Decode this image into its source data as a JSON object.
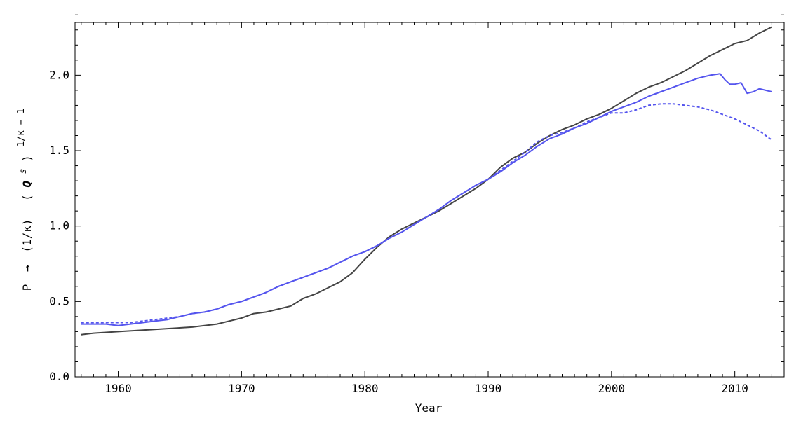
{
  "chart_data": {
    "type": "line",
    "title": "",
    "xlabel": "Year",
    "ylabel": "P → (1/κ) (Qˢ)^(1/κ − 1)",
    "ylabel_parts": {
      "p": "P",
      "arrow": "→",
      "inv_kappa": "(1/κ)",
      "q_open": "(",
      "q": "Q",
      "s": "s",
      "q_close": ")",
      "exponent": "1/κ − 1"
    },
    "xlim": [
      1956.5,
      2014
    ],
    "ylim": [
      0,
      2.35
    ],
    "xticks": [
      1960,
      1970,
      1980,
      1990,
      2000,
      2010
    ],
    "xtick_labels": [
      "1960",
      "1970",
      "1980",
      "1990",
      "2000",
      "2010"
    ],
    "yticks": [
      0,
      0.5,
      1.0,
      1.5,
      2.0
    ],
    "ytick_labels": [
      "0.0",
      "0.5",
      "1.0",
      "1.5",
      "2.0"
    ],
    "grid": false,
    "legend": "none",
    "colors": {
      "dark": "#444444",
      "blue": "#5555ee",
      "axis": "#000000"
    },
    "series": [
      {
        "style": "solid-dark",
        "points": [
          [
            1957,
            0.28
          ],
          [
            1958,
            0.29
          ],
          [
            1960,
            0.3
          ],
          [
            1962,
            0.31
          ],
          [
            1964,
            0.32
          ],
          [
            1966,
            0.33
          ],
          [
            1968,
            0.35
          ],
          [
            1969,
            0.37
          ],
          [
            1970,
            0.39
          ],
          [
            1971,
            0.42
          ],
          [
            1972,
            0.43
          ],
          [
            1973,
            0.45
          ],
          [
            1974,
            0.47
          ],
          [
            1975,
            0.52
          ],
          [
            1976,
            0.55
          ],
          [
            1977,
            0.59
          ],
          [
            1978,
            0.63
          ],
          [
            1979,
            0.69
          ],
          [
            1980,
            0.78
          ],
          [
            1981,
            0.86
          ],
          [
            1982,
            0.93
          ],
          [
            1983,
            0.98
          ],
          [
            1984,
            1.02
          ],
          [
            1985,
            1.06
          ],
          [
            1986,
            1.1
          ],
          [
            1987,
            1.15
          ],
          [
            1988,
            1.2
          ],
          [
            1989,
            1.25
          ],
          [
            1990,
            1.31
          ],
          [
            1991,
            1.39
          ],
          [
            1992,
            1.45
          ],
          [
            1993,
            1.49
          ],
          [
            1994,
            1.55
          ],
          [
            1995,
            1.6
          ],
          [
            1996,
            1.64
          ],
          [
            1997,
            1.67
          ],
          [
            1998,
            1.71
          ],
          [
            1999,
            1.74
          ],
          [
            2000,
            1.78
          ],
          [
            2001,
            1.83
          ],
          [
            2002,
            1.88
          ],
          [
            2003,
            1.92
          ],
          [
            2004,
            1.95
          ],
          [
            2005,
            1.99
          ],
          [
            2006,
            2.03
          ],
          [
            2007,
            2.08
          ],
          [
            2008,
            2.13
          ],
          [
            2009,
            2.17
          ],
          [
            2010,
            2.21
          ],
          [
            2011,
            2.23
          ],
          [
            2012,
            2.28
          ],
          [
            2013,
            2.32
          ]
        ]
      },
      {
        "style": "solid-blue",
        "points": [
          [
            1957,
            0.35
          ],
          [
            1958,
            0.35
          ],
          [
            1959,
            0.35
          ],
          [
            1960,
            0.34
          ],
          [
            1961,
            0.35
          ],
          [
            1962,
            0.36
          ],
          [
            1963,
            0.37
          ],
          [
            1964,
            0.38
          ],
          [
            1965,
            0.4
          ],
          [
            1966,
            0.42
          ],
          [
            1967,
            0.43
          ],
          [
            1968,
            0.45
          ],
          [
            1969,
            0.48
          ],
          [
            1970,
            0.5
          ],
          [
            1971,
            0.53
          ],
          [
            1972,
            0.56
          ],
          [
            1973,
            0.6
          ],
          [
            1974,
            0.63
          ],
          [
            1975,
            0.66
          ],
          [
            1976,
            0.69
          ],
          [
            1977,
            0.72
          ],
          [
            1978,
            0.76
          ],
          [
            1979,
            0.8
          ],
          [
            1980,
            0.83
          ],
          [
            1981,
            0.87
          ],
          [
            1982,
            0.92
          ],
          [
            1983,
            0.96
          ],
          [
            1984,
            1.01
          ],
          [
            1985,
            1.06
          ],
          [
            1986,
            1.11
          ],
          [
            1987,
            1.17
          ],
          [
            1988,
            1.22
          ],
          [
            1989,
            1.27
          ],
          [
            1990,
            1.31
          ],
          [
            1991,
            1.36
          ],
          [
            1992,
            1.42
          ],
          [
            1993,
            1.47
          ],
          [
            1994,
            1.53
          ],
          [
            1995,
            1.58
          ],
          [
            1996,
            1.61
          ],
          [
            1997,
            1.65
          ],
          [
            1998,
            1.68
          ],
          [
            1999,
            1.72
          ],
          [
            2000,
            1.76
          ],
          [
            2001,
            1.79
          ],
          [
            2002,
            1.82
          ],
          [
            2003,
            1.86
          ],
          [
            2004,
            1.89
          ],
          [
            2005,
            1.92
          ],
          [
            2006,
            1.95
          ],
          [
            2007,
            1.98
          ],
          [
            2008,
            2.0
          ],
          [
            2008.8,
            2.01
          ],
          [
            2009.2,
            1.97
          ],
          [
            2009.6,
            1.94
          ],
          [
            2010,
            1.94
          ],
          [
            2010.5,
            1.95
          ],
          [
            2011,
            1.88
          ],
          [
            2011.5,
            1.89
          ],
          [
            2012,
            1.91
          ],
          [
            2012.5,
            1.9
          ],
          [
            2013,
            1.89
          ]
        ]
      },
      {
        "style": "dashed-blue",
        "points": [
          [
            1957,
            0.36
          ],
          [
            1958,
            0.36
          ],
          [
            1959,
            0.36
          ],
          [
            1960,
            0.36
          ],
          [
            1961,
            0.36
          ],
          [
            1962,
            0.37
          ],
          [
            1963,
            0.38
          ],
          [
            1964,
            0.39
          ],
          [
            1965,
            0.4
          ],
          [
            1966,
            0.42
          ],
          [
            1967,
            0.43
          ],
          [
            1968,
            0.45
          ],
          [
            1969,
            0.48
          ],
          [
            1970,
            0.5
          ],
          [
            1971,
            0.53
          ],
          [
            1972,
            0.56
          ],
          [
            1973,
            0.6
          ],
          [
            1974,
            0.63
          ],
          [
            1975,
            0.66
          ],
          [
            1976,
            0.69
          ],
          [
            1977,
            0.72
          ],
          [
            1978,
            0.76
          ],
          [
            1979,
            0.8
          ],
          [
            1980,
            0.83
          ],
          [
            1981,
            0.87
          ],
          [
            1982,
            0.92
          ],
          [
            1983,
            0.96
          ],
          [
            1984,
            1.01
          ],
          [
            1985,
            1.06
          ],
          [
            1986,
            1.11
          ],
          [
            1987,
            1.17
          ],
          [
            1988,
            1.22
          ],
          [
            1989,
            1.27
          ],
          [
            1990,
            1.31
          ],
          [
            1991,
            1.37
          ],
          [
            1992,
            1.43
          ],
          [
            1993,
            1.49
          ],
          [
            1994,
            1.56
          ],
          [
            1995,
            1.6
          ],
          [
            1996,
            1.62
          ],
          [
            1997,
            1.65
          ],
          [
            1998,
            1.69
          ],
          [
            1999,
            1.72
          ],
          [
            2000,
            1.75
          ],
          [
            2001,
            1.75
          ],
          [
            2002,
            1.77
          ],
          [
            2003,
            1.8
          ],
          [
            2004,
            1.81
          ],
          [
            2005,
            1.81
          ],
          [
            2006,
            1.8
          ],
          [
            2007,
            1.79
          ],
          [
            2008,
            1.77
          ],
          [
            2009,
            1.74
          ],
          [
            2010,
            1.71
          ],
          [
            2011,
            1.67
          ],
          [
            2012,
            1.63
          ],
          [
            2013,
            1.57
          ]
        ]
      }
    ]
  }
}
